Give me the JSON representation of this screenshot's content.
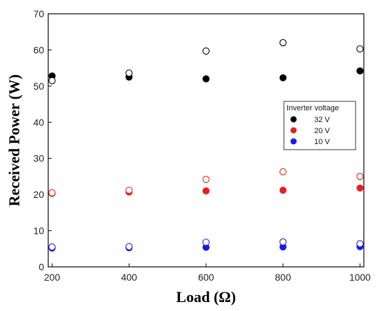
{
  "chart_data": {
    "type": "scatter",
    "xlabel": "Load (Ω)",
    "ylabel": "Received Power (W)",
    "xlim": [
      190,
      1010
    ],
    "ylim": [
      0,
      70
    ],
    "xticks": [
      200,
      400,
      600,
      800,
      1000
    ],
    "yticks": [
      0,
      10,
      20,
      30,
      40,
      50,
      60,
      70
    ],
    "grid": false,
    "legend": {
      "title": "Inverter voltage",
      "placement": "center-right",
      "entries": [
        {
          "label": "32 V",
          "color": "#000000"
        },
        {
          "label": "20 V",
          "color": "#e8201c"
        },
        {
          "label": "10 V",
          "color": "#1a1ae8"
        }
      ]
    },
    "x": [
      200,
      400,
      600,
      800,
      1000
    ],
    "series": [
      {
        "group": "32 V",
        "marker": "filled",
        "color": "#000000",
        "values": [
          52.8,
          52.5,
          52.0,
          52.3,
          54.2
        ]
      },
      {
        "group": "32 V",
        "marker": "open",
        "color": "#000000",
        "values": [
          51.5,
          53.6,
          59.7,
          62.0,
          60.3
        ]
      },
      {
        "group": "20 V",
        "marker": "filled",
        "color": "#e8201c",
        "values": [
          20.3,
          20.7,
          21.0,
          21.2,
          21.8
        ]
      },
      {
        "group": "20 V",
        "marker": "open",
        "color": "#e8201c",
        "values": [
          20.5,
          21.2,
          24.2,
          26.3,
          25.0
        ]
      },
      {
        "group": "10 V",
        "marker": "filled",
        "color": "#1a1ae8",
        "values": [
          5.2,
          5.3,
          5.4,
          5.5,
          5.6
        ]
      },
      {
        "group": "10 V",
        "marker": "open",
        "color": "#1a1ae8",
        "values": [
          5.5,
          5.6,
          6.8,
          6.9,
          6.4
        ]
      }
    ]
  }
}
